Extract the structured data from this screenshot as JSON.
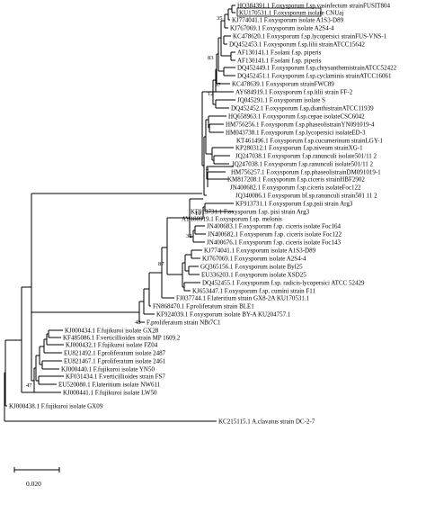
{
  "leaves": [
    "HQ384391.1 F.oxysporum f.sp.vasinfectum strainFUSIT804",
    "KU170531.1 F.oxysporum isolate CNUaj",
    "KJ774041.1 F.oxysporum isolate A1S3-D89",
    "KJ767069.1 F.oxysporum isolate A2S4-4",
    "KC478620.1 F.oxysporum f.sp.lycopersici strainFUS-VNS-1",
    "DQ452453.1 F.oxysporum f.sp.lilii strainATCC15642",
    "AF130141.1 F.solani f.sp. piperis",
    "AF130141.1 F.solani f.sp. piperis",
    "DQ452449.1 F.oxysporum f.sp.chrysanthemistrainATCC52422",
    "DQ452451.1 F.oxysporum f.sp.cyclaminis strainATCC16061",
    "KC478639.1 F.oxysporum strainFWC89",
    "AY684919.1 F.oxysporum f.sp.lilii strain FF-2",
    "JQ045291.1 F.oxysporum isolate S",
    "DQ452452.1 F.oxysporum f.sp.dianthistrainATCC11939",
    "HQ658963.1 F.oxysporum f.sp.cepae isolateCSC6042",
    "HM756256.1 F.oxysporum f.sp.phaseolistrainYN091019-4",
    "HM043738.1 F.oxysporum f.sp.lycopersici isolateED-3",
    "KT461496.1 F.oxysporum f.sp.cucumerinum strainLGY-1",
    "KP280312.1 F.oxysporum f.sp.niveum strainXG-1",
    "JQ247038.1 F.oxysporum f.sp.ranunculi isolate501/11 2",
    "JQ247038.1 F.oxysporum f.sp.ranunculi isolate501/11 2",
    "HM756257.1 F.oxysporum f.sp.phaseolistrainDM091019-1",
    "KM817208.1 F.oxysporum f.sp.ciceris strainHBF2902",
    "JN400682.1 F.oxysporum f.sp.ciceris isolateFoc122",
    "JQ340086.1 F.oxysporum bf.sp.ranunculi strain501 11 2",
    "KF913731.1 F.oxysporum f.sp.psii strain Arg3",
    "KF913731.1 F.oxysporum f.sp. pisi strain Arg3",
    "AY188919.1 F.oxysporum f.sp. melonis",
    "JN400683.1 F.oxysporum f.sp. ciceris isolate Foc164",
    "JN400682.1 F.oxysporum f.sp. ciceris isolate Foc122",
    "JN400676.1 F.oxysporum f.sp. ciceris isolate Foc143",
    "KJ774041.1 F.oxysporum isolate A1S3-D89",
    "KJ767069.1 F.oxysporum isolate A2S4-4",
    "GQ365156.1 F.oxysporum isolate Byl25",
    "EU336203.1 F.oxysporum isolate XSD25",
    "DQ452455.1 F.oxysporum f.sp. radicis-lycopersici ATCC 52429",
    "KJ653447.1 F.oxysporum f.sp. cumini strain F11",
    "FJ037744.1 F.lateritium strain GX8-2A KU170531.1",
    "FN868470.1 F.proliferatum strain BLE1",
    "KF924039.1 F.oxysporum isolate BY-A KU204757.1",
    "F.proliferatum strain NBt7C1",
    "KJ000434.1 F.fujikuroi isolate GX28",
    "KF485086.1 F.verticillioides strain MP 1609.2",
    "KJ000432.1 F.fujikuroi isolate FZ04",
    "EU821492.1 F.proliferatum isolate 2487",
    "EU821467.1 F.proliferatum isolate 2461",
    "KJ000440.1 F.fujikuroi isolate YN50",
    "KF031434.1 F.verticillioides strain FS7",
    "EU520080.1 F.lateritium isolate NW611",
    "KJ000441.1 F.fujikuroi isolate LW50",
    "KJ000438.1 F.fujikuroi isolate GX09",
    "KC215115.1 A.clavatus strain DC-2-7"
  ],
  "bootstrap": [
    "35",
    "83",
    "57",
    "12",
    "4",
    "16",
    "32",
    "87",
    "48",
    "47"
  ],
  "scale": {
    "label": "0.020"
  }
}
